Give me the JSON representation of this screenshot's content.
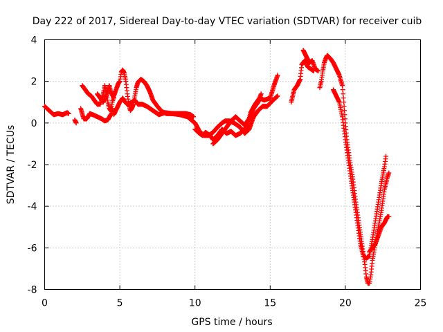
{
  "chart_data": {
    "type": "scatter",
    "title": "Day 222 of 2017, Sidereal Day-to-day VTEC variation (SDTVAR) for receiver cuib",
    "xlabel": "GPS time / hours",
    "ylabel": "SDTVAR / TECUs",
    "xlim": [
      0,
      25
    ],
    "ylim": [
      -8,
      4
    ],
    "xticks": [
      0,
      5,
      10,
      15,
      20,
      25
    ],
    "yticks": [
      -8,
      -6,
      -4,
      -2,
      0,
      2,
      4
    ],
    "grid": true,
    "marker": "plus",
    "color": "#ff0000",
    "series": [
      {
        "tracks": [
          [
            [
              0.0,
              0.8
            ],
            [
              0.3,
              0.6
            ],
            [
              0.6,
              0.4
            ],
            [
              0.9,
              0.45
            ],
            [
              1.2,
              0.4
            ],
            [
              1.5,
              0.5
            ],
            [
              1.6,
              0.45
            ]
          ],
          [
            [
              2.0,
              0.15
            ],
            [
              2.1,
              0.0
            ]
          ],
          [
            [
              2.4,
              0.7
            ],
            [
              2.6,
              0.2
            ],
            [
              2.8,
              0.2
            ],
            [
              3.0,
              0.45
            ],
            [
              3.2,
              0.4
            ],
            [
              3.5,
              0.3
            ],
            [
              3.8,
              0.2
            ],
            [
              4.0,
              0.1
            ],
            [
              4.2,
              0.15
            ],
            [
              4.4,
              0.4
            ],
            [
              4.5,
              0.7
            ],
            [
              4.6,
              0.4
            ],
            [
              4.8,
              0.7
            ],
            [
              5.0,
              1.0
            ],
            [
              5.2,
              1.2
            ],
            [
              5.3,
              1.05
            ],
            [
              5.5,
              0.9
            ],
            [
              5.8,
              1.0
            ],
            [
              6.0,
              1.1
            ],
            [
              6.2,
              0.9
            ],
            [
              6.5,
              0.9
            ],
            [
              6.8,
              0.8
            ],
            [
              7.2,
              0.6
            ],
            [
              7.6,
              0.4
            ],
            [
              8.0,
              0.5
            ],
            [
              8.5,
              0.45
            ],
            [
              9.0,
              0.4
            ],
            [
              9.5,
              0.3
            ],
            [
              10.0,
              0.0
            ],
            [
              10.3,
              -0.4
            ],
            [
              10.6,
              -0.6
            ],
            [
              10.9,
              -0.6
            ],
            [
              11.2,
              -0.45
            ],
            [
              11.5,
              -0.2
            ],
            [
              11.8,
              0.0
            ],
            [
              12.0,
              0.1
            ],
            [
              12.3,
              0.1
            ],
            [
              12.6,
              0.0
            ],
            [
              13.0,
              -0.2
            ],
            [
              13.3,
              -0.5
            ],
            [
              13.6,
              -0.3
            ],
            [
              13.9,
              0.3
            ],
            [
              14.2,
              0.6
            ],
            [
              14.5,
              0.8
            ],
            [
              14.8,
              0.8
            ],
            [
              15.2,
              1.1
            ],
            [
              15.5,
              1.3
            ]
          ],
          [
            [
              2.5,
              1.8
            ],
            [
              2.7,
              1.6
            ],
            [
              2.9,
              1.4
            ],
            [
              3.1,
              1.3
            ],
            [
              3.3,
              1.1
            ],
            [
              3.5,
              0.9
            ],
            [
              3.7,
              0.9
            ],
            [
              3.9,
              1.4
            ],
            [
              4.0,
              1.8
            ],
            [
              4.1,
              1.5
            ],
            [
              4.2,
              1.0
            ],
            [
              4.3,
              0.7
            ],
            [
              4.4,
              0.6
            ],
            [
              4.5,
              1.0
            ],
            [
              4.6,
              1.3
            ],
            [
              4.7,
              1.5
            ],
            [
              4.8,
              1.7
            ],
            [
              4.9,
              1.9
            ],
            [
              5.0,
              2.0
            ],
            [
              5.1,
              2.45
            ],
            [
              5.2,
              2.55
            ],
            [
              5.3,
              2.4
            ],
            [
              5.4,
              2.0
            ],
            [
              5.5,
              1.4
            ],
            [
              5.6,
              0.9
            ],
            [
              5.7,
              0.6
            ],
            [
              5.8,
              0.7
            ],
            [
              5.9,
              0.9
            ],
            [
              6.0,
              1.3
            ],
            [
              6.1,
              1.7
            ],
            [
              6.2,
              1.95
            ],
            [
              6.4,
              2.1
            ],
            [
              6.6,
              2.0
            ],
            [
              6.8,
              1.8
            ],
            [
              7.0,
              1.5
            ],
            [
              7.2,
              1.1
            ],
            [
              7.5,
              0.8
            ],
            [
              7.8,
              0.55
            ],
            [
              8.1,
              0.45
            ],
            [
              8.5,
              0.45
            ],
            [
              9.0,
              0.45
            ],
            [
              9.4,
              0.45
            ],
            [
              9.7,
              0.4
            ],
            [
              9.9,
              0.3
            ]
          ],
          [
            [
              3.5,
              1.4
            ],
            [
              3.7,
              1.2
            ],
            [
              3.9,
              1.0
            ],
            [
              4.1,
              1.3
            ],
            [
              4.3,
              1.8
            ],
            [
              4.4,
              1.5
            ],
            [
              4.6,
              1.2
            ]
          ],
          [
            [
              10.0,
              -0.3
            ],
            [
              10.3,
              -0.5
            ],
            [
              10.5,
              -0.6
            ],
            [
              10.7,
              -0.45
            ],
            [
              11.0,
              -0.6
            ],
            [
              11.2,
              -0.8
            ],
            [
              11.5,
              -0.6
            ],
            [
              11.8,
              -0.3
            ],
            [
              12.1,
              -0.5
            ],
            [
              12.4,
              -0.4
            ],
            [
              12.7,
              -0.6
            ],
            [
              13.0,
              -0.5
            ],
            [
              13.3,
              -0.3
            ],
            [
              13.5,
              -0.1
            ],
            [
              13.7,
              0.5
            ],
            [
              14.0,
              0.9
            ],
            [
              14.3,
              1.2
            ],
            [
              14.6,
              1.1
            ],
            [
              15.0,
              1.2
            ],
            [
              15.3,
              1.9
            ],
            [
              15.5,
              2.3
            ]
          ],
          [
            [
              11.2,
              -1.0
            ],
            [
              11.5,
              -0.8
            ],
            [
              11.8,
              -0.5
            ],
            [
              12.1,
              -0.2
            ],
            [
              12.4,
              0.1
            ],
            [
              12.7,
              0.3
            ],
            [
              13.0,
              0.1
            ],
            [
              13.3,
              -0.1
            ],
            [
              13.6,
              0.2
            ],
            [
              13.9,
              0.7
            ],
            [
              14.2,
              1.0
            ],
            [
              14.4,
              1.4
            ]
          ],
          [
            [
              16.4,
              1.0
            ],
            [
              16.6,
              1.6
            ],
            [
              16.8,
              1.8
            ],
            [
              17.0,
              2.1
            ],
            [
              17.1,
              2.8
            ],
            [
              17.3,
              3.0
            ],
            [
              17.5,
              2.7
            ],
            [
              17.7,
              2.6
            ],
            [
              17.9,
              2.5
            ]
          ],
          [
            [
              17.2,
              3.5
            ],
            [
              17.4,
              3.2
            ],
            [
              17.6,
              2.9
            ],
            [
              17.8,
              3.0
            ],
            [
              18.0,
              2.6
            ],
            [
              18.2,
              2.5
            ]
          ],
          [
            [
              18.3,
              1.7
            ],
            [
              18.4,
              2.0
            ],
            [
              18.5,
              2.5
            ],
            [
              18.6,
              2.9
            ],
            [
              18.7,
              3.1
            ],
            [
              18.8,
              3.25
            ],
            [
              19.0,
              3.1
            ],
            [
              19.2,
              2.9
            ],
            [
              19.4,
              2.6
            ],
            [
              19.6,
              2.3
            ],
            [
              19.8,
              1.8
            ],
            [
              19.9,
              1.0
            ],
            [
              20.0,
              0.0
            ],
            [
              20.1,
              -0.8
            ],
            [
              20.3,
              -1.8
            ],
            [
              20.5,
              -2.7
            ],
            [
              20.7,
              -3.8
            ],
            [
              20.9,
              -4.8
            ],
            [
              21.1,
              -5.8
            ],
            [
              21.3,
              -6.8
            ],
            [
              21.4,
              -7.4
            ],
            [
              21.5,
              -7.7
            ],
            [
              21.6,
              -7.7
            ],
            [
              21.7,
              -7.3
            ],
            [
              21.8,
              -6.6
            ],
            [
              22.0,
              -5.8
            ],
            [
              22.2,
              -5.0
            ],
            [
              22.4,
              -4.2
            ],
            [
              22.6,
              -3.2
            ],
            [
              22.8,
              -2.6
            ],
            [
              22.9,
              -2.4
            ]
          ],
          [
            [
              19.2,
              1.6
            ],
            [
              19.4,
              1.3
            ],
            [
              19.6,
              1.0
            ],
            [
              19.8,
              0.3
            ],
            [
              20.0,
              -0.8
            ],
            [
              20.2,
              -1.8
            ],
            [
              20.4,
              -2.8
            ],
            [
              20.6,
              -3.8
            ],
            [
              20.8,
              -4.8
            ],
            [
              21.0,
              -5.8
            ],
            [
              21.2,
              -6.4
            ],
            [
              21.4,
              -6.5
            ],
            [
              21.6,
              -6.4
            ],
            [
              21.8,
              -5.6
            ],
            [
              22.0,
              -4.7
            ],
            [
              22.2,
              -3.8
            ],
            [
              22.4,
              -2.9
            ],
            [
              22.6,
              -2.1
            ],
            [
              22.7,
              -1.6
            ]
          ],
          [
            [
              21.6,
              -6.2
            ],
            [
              21.8,
              -6.0
            ],
            [
              22.0,
              -5.8
            ],
            [
              22.2,
              -5.4
            ],
            [
              22.4,
              -5.0
            ],
            [
              22.6,
              -4.8
            ],
            [
              22.8,
              -4.5
            ],
            [
              22.9,
              -4.5
            ]
          ]
        ]
      }
    ]
  }
}
